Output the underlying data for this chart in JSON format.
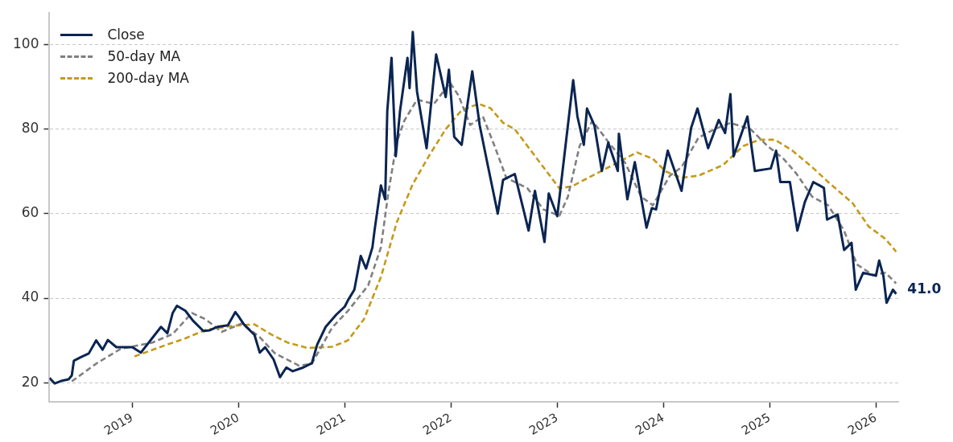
{
  "chart_data": {
    "type": "line",
    "xlim": [
      2018.22,
      2026.21
    ],
    "xticks": [
      2019,
      2020,
      2021,
      2022,
      2023,
      2024,
      2025,
      2026
    ],
    "ylim": [
      15.4,
      107.5
    ],
    "yticks": [
      20,
      40,
      60,
      80,
      100
    ],
    "grid": "y",
    "legend": "top left",
    "marker": "none",
    "annotations": [
      {
        "text": "41.0",
        "x": 2026.19,
        "y": 41
      }
    ],
    "series": [
      {
        "name": "Close",
        "color": "#0b2552",
        "line_style": "solid",
        "x": [
          2018.22,
          2018.27,
          2018.33,
          2018.4,
          2018.43,
          2018.45,
          2018.52,
          2018.59,
          2018.66,
          2018.72,
          2018.77,
          2018.85,
          2019.0,
          2019.08,
          2019.18,
          2019.27,
          2019.33,
          2019.38,
          2019.42,
          2019.5,
          2019.57,
          2019.67,
          2019.73,
          2019.8,
          2019.9,
          2019.97,
          2020.0,
          2020.05,
          2020.15,
          2020.2,
          2020.25,
          2020.33,
          2020.39,
          2020.45,
          2020.51,
          2020.61,
          2020.69,
          2020.74,
          2020.82,
          2020.92,
          2021.0,
          2021.03,
          2021.09,
          2021.15,
          2021.2,
          2021.26,
          2021.28,
          2021.34,
          2021.38,
          2021.4,
          2021.44,
          2021.48,
          2021.52,
          2021.59,
          2021.61,
          2021.64,
          2021.68,
          2021.77,
          2021.86,
          2021.95,
          2021.98,
          2022.03,
          2022.1,
          2022.2,
          2022.27,
          2022.34,
          2022.44,
          2022.49,
          2022.6,
          2022.73,
          2022.79,
          2022.88,
          2022.92,
          2023.0,
          2023.05,
          2023.15,
          2023.19,
          2023.25,
          2023.28,
          2023.35,
          2023.42,
          2023.48,
          2023.57,
          2023.58,
          2023.66,
          2023.73,
          2023.84,
          2023.89,
          2023.93,
          2024.04,
          2024.17,
          2024.26,
          2024.32,
          2024.42,
          2024.52,
          2024.58,
          2024.63,
          2024.66,
          2024.79,
          2024.86,
          2025.01,
          2025.06,
          2025.1,
          2025.19,
          2025.26,
          2025.33,
          2025.41,
          2025.51,
          2025.54,
          2025.64,
          2025.7,
          2025.77,
          2025.81,
          2025.88,
          2026.0,
          2026.03,
          2026.07,
          2026.1,
          2026.16,
          2026.19
        ],
        "values": [
          21.1,
          19.8,
          20.4,
          20.8,
          21.7,
          25.2,
          26.1,
          26.9,
          30.0,
          27.8,
          30.1,
          28.4,
          28.4,
          27.1,
          30.3,
          33.2,
          31.7,
          36.5,
          38.2,
          37.0,
          34.7,
          32.2,
          32.4,
          33.2,
          33.6,
          36.7,
          35.7,
          33.8,
          31.3,
          27.1,
          28.4,
          25.5,
          21.3,
          23.6,
          22.7,
          23.6,
          24.6,
          29.0,
          33.2,
          36.1,
          38.0,
          39.5,
          42.0,
          50.0,
          47.0,
          52.0,
          56.0,
          66.7,
          63.4,
          84.3,
          96.9,
          73.6,
          84.3,
          96.9,
          89.7,
          103.0,
          88.9,
          75.5,
          97.7,
          87.6,
          94.1,
          78.2,
          76.3,
          93.7,
          80.9,
          72.2,
          60.0,
          68.0,
          69.4,
          56.0,
          65.4,
          53.3,
          64.8,
          59.4,
          70.1,
          91.6,
          83.0,
          76.3,
          84.9,
          80.9,
          70.1,
          76.8,
          70.1,
          78.9,
          63.4,
          72.2,
          56.7,
          61.3,
          61.0,
          74.9,
          65.4,
          80.3,
          84.9,
          75.5,
          82.2,
          79.1,
          88.3,
          73.6,
          83.0,
          70.1,
          70.7,
          74.9,
          67.5,
          67.5,
          56.0,
          62.7,
          67.5,
          66.1,
          58.6,
          59.8,
          51.4,
          53.1,
          42.0,
          46.0,
          45.3,
          48.9,
          45.3,
          38.9,
          42.0,
          41.0
        ]
      },
      {
        "name": "50-day MA",
        "color": "#808080",
        "line_style": "dashed",
        "x": [
          2018.43,
          2018.66,
          2018.89,
          2019.19,
          2019.38,
          2019.56,
          2019.69,
          2019.84,
          2020.03,
          2020.19,
          2020.34,
          2020.57,
          2020.69,
          2020.88,
          2021.03,
          2021.22,
          2021.34,
          2021.41,
          2021.49,
          2021.56,
          2021.68,
          2021.84,
          2021.99,
          2022.07,
          2022.18,
          2022.3,
          2022.41,
          2022.52,
          2022.72,
          2022.87,
          2023.02,
          2023.1,
          2023.21,
          2023.33,
          2023.48,
          2023.64,
          2023.79,
          2023.9,
          2024.06,
          2024.17,
          2024.33,
          2024.48,
          2024.63,
          2024.82,
          2024.98,
          2025.13,
          2025.25,
          2025.4,
          2025.55,
          2025.7,
          2025.82,
          2025.97,
          2026.09,
          2026.19
        ],
        "values": [
          20.3,
          24.5,
          28,
          29.5,
          31.5,
          36.5,
          35,
          32,
          34,
          31,
          27,
          24,
          24.5,
          33,
          37,
          43,
          52,
          65,
          77,
          82,
          87,
          86,
          91,
          88,
          81,
          83,
          76,
          68.5,
          66,
          61,
          59.5,
          64,
          76,
          82,
          77,
          72,
          64,
          62,
          69,
          71,
          78,
          80,
          81.5,
          80,
          76,
          73,
          69.5,
          64,
          62,
          56,
          48,
          45.5,
          46,
          43.5
        ]
      },
      {
        "name": "200-day MA",
        "color": "#c49a1a",
        "line_style": "dashed",
        "x": [
          2019.02,
          2019.27,
          2019.5,
          2019.69,
          2019.96,
          2020.15,
          2020.3,
          2020.46,
          2020.65,
          2020.88,
          2021.03,
          2021.18,
          2021.34,
          2021.49,
          2021.64,
          2021.8,
          2021.95,
          2022.1,
          2022.26,
          2022.37,
          2022.49,
          2022.6,
          2022.75,
          2022.9,
          2023.02,
          2023.14,
          2023.33,
          2023.56,
          2023.75,
          2023.9,
          2024.02,
          2024.17,
          2024.33,
          2024.56,
          2024.75,
          2024.9,
          2025.05,
          2025.21,
          2025.4,
          2025.55,
          2025.78,
          2025.93,
          2026.09,
          2026.19
        ],
        "values": [
          26.2,
          28.5,
          30.5,
          32.5,
          33.5,
          33.8,
          31.5,
          29.5,
          28.2,
          28.5,
          30,
          35,
          45,
          58,
          67,
          74,
          80,
          84.5,
          86,
          85,
          81.5,
          80,
          75,
          70,
          66,
          66.5,
          69,
          72,
          74.5,
          73,
          70,
          68.5,
          69,
          71.5,
          76,
          77.5,
          77.5,
          75,
          71,
          67.5,
          62.5,
          57,
          54,
          51
        ]
      }
    ]
  }
}
